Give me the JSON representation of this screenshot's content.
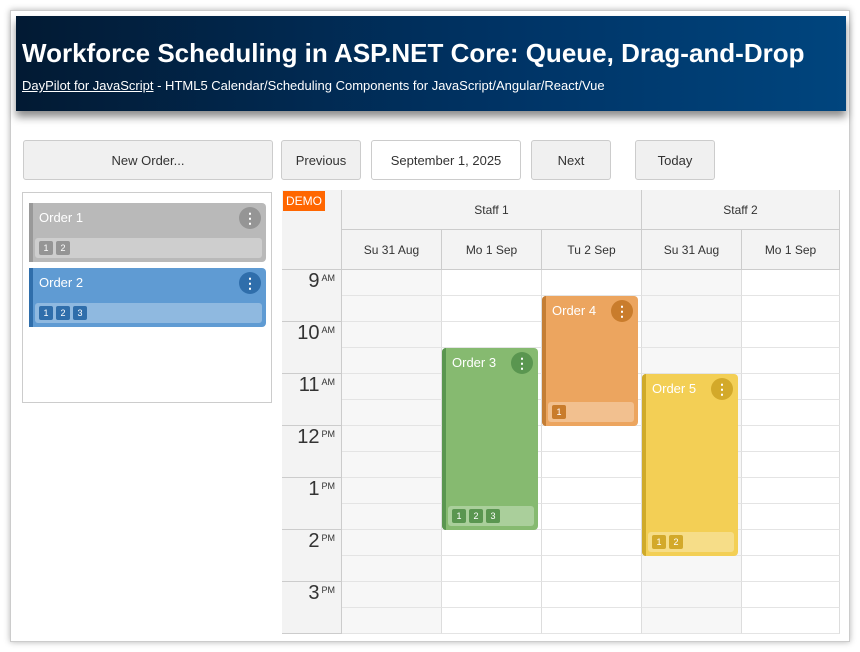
{
  "header": {
    "title": "Workforce Scheduling in ASP.NET Core: Queue, Drag-and-Drop",
    "link": "DayPilot for JavaScript",
    "subtitle": " - HTML5 Calendar/Scheduling Components for JavaScript/Angular/React/Vue"
  },
  "toolbar": {
    "new_order": "New Order...",
    "previous": "Previous",
    "date": "September 1, 2025",
    "next": "Next",
    "today": "Today"
  },
  "queue": [
    {
      "name": "Order 1",
      "tags": [
        "1",
        "2"
      ],
      "color": "#b9b9b9",
      "bar": "#999999",
      "dark": "#959595"
    },
    {
      "name": "Order 2",
      "tags": [
        "1",
        "2",
        "3"
      ],
      "color": "#5f9bd3",
      "bar": "#2f6eab",
      "dark": "#2f6eab"
    }
  ],
  "calendar": {
    "demo": "DEMO",
    "resources": [
      {
        "name": "Staff 1",
        "days": [
          "Su 31 Aug",
          "Mo 1 Sep",
          "Tu 2 Sep"
        ]
      },
      {
        "name": "Staff 2",
        "days": [
          "Su 31 Aug",
          "Mo 1 Sep"
        ]
      }
    ],
    "hours": [
      {
        "h": "9",
        "ap": "AM"
      },
      {
        "h": "10",
        "ap": "AM"
      },
      {
        "h": "11",
        "ap": "AM"
      },
      {
        "h": "12",
        "ap": "PM"
      },
      {
        "h": "1",
        "ap": "PM"
      },
      {
        "h": "2",
        "ap": "PM"
      },
      {
        "h": "3",
        "ap": "PM"
      }
    ],
    "events": [
      {
        "name": "Order 3",
        "resource": "Staff 1",
        "day": "Mo 1 Sep",
        "start": "10:30",
        "end": "14:00",
        "tags": [
          "1",
          "2",
          "3"
        ],
        "color": "#86ba70",
        "bar": "#5a9650",
        "dark": "#5a9650"
      },
      {
        "name": "Order 4",
        "resource": "Staff 1",
        "day": "Tu 2 Sep",
        "start": "9:30",
        "end": "12:00",
        "tags": [
          "1"
        ],
        "color": "#eca55f",
        "bar": "#c47e35",
        "dark": "#c97c2c"
      },
      {
        "name": "Order 5",
        "resource": "Staff 2",
        "day": "Su 31 Aug",
        "start": "11:00",
        "end": "14:30",
        "tags": [
          "1",
          "2"
        ],
        "color": "#f3cf55",
        "bar": "#cfaa2a",
        "dark": "#d3a92a"
      }
    ]
  }
}
